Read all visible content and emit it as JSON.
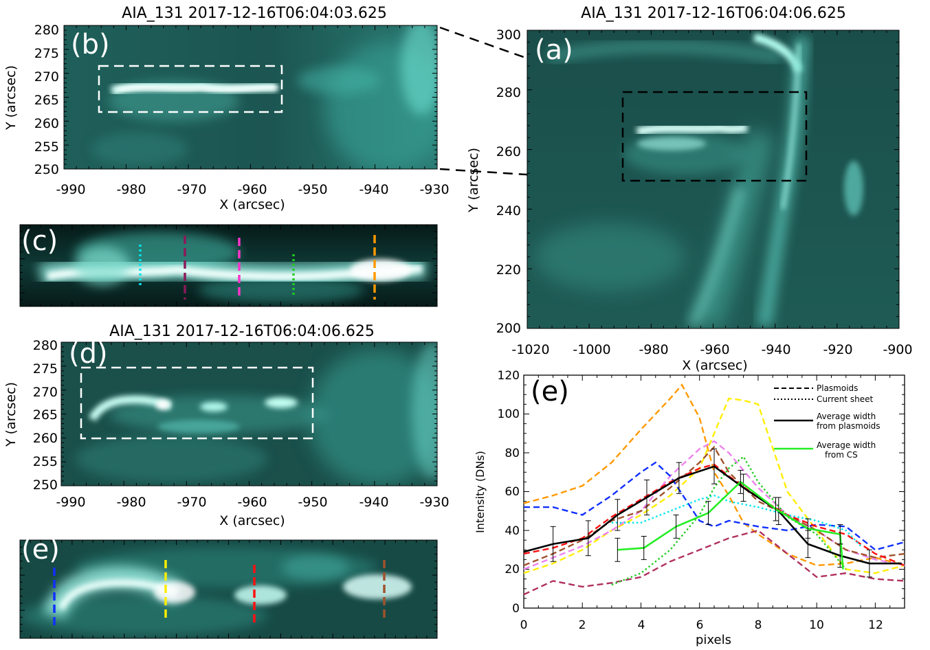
{
  "panel_b": {
    "title": "AIA_131 2017-12-16T06:04:03.625",
    "label": "(b)",
    "xlabel": "X (arcsec)",
    "ylabel": "Y (arcsec)",
    "xticks": [
      "-990",
      "-980",
      "-970",
      "-960",
      "-950",
      "-940",
      "-930"
    ],
    "yticks": [
      "280",
      "275",
      "270",
      "265",
      "260",
      "255",
      "250"
    ]
  },
  "panel_a": {
    "title": "AIA_131 2017-12-16T06:04:06.625",
    "label": "(a)",
    "xlabel": "X (arcsec)",
    "ylabel": "Y (arcsec)",
    "xticks": [
      "-1020",
      "-1000",
      "-980",
      "-960",
      "-940",
      "-920",
      "-900"
    ],
    "yticks": [
      "300",
      "280",
      "260",
      "240",
      "220",
      "200"
    ]
  },
  "panel_c": {
    "label": "(c)"
  },
  "panel_d": {
    "title": "AIA_131 2017-12-16T06:04:06.625",
    "label": "(d)",
    "xlabel": "X (arcsec)",
    "ylabel": "Y (arcsec)",
    "xticks": [
      "-990",
      "-980",
      "-970",
      "-960",
      "-950",
      "-940",
      "-930"
    ],
    "yticks": [
      "280",
      "275",
      "270",
      "265",
      "260",
      "255",
      "250"
    ]
  },
  "panel_e_image": {
    "label": "(e)"
  },
  "colors": {
    "cyan": "#00e5ee",
    "purple": "#8b1a5a",
    "magenta": "#ff33cc",
    "green": "#22cc22",
    "orange": "#ff9900",
    "blue": "#1030ff",
    "yellow": "#ffee00",
    "red": "#ff1010",
    "brown": "#a0522d",
    "violet": "#ee82ee",
    "darkpink": "#b03060"
  },
  "chart_data": {
    "type": "line",
    "label": "(e)",
    "xlabel": "pixels",
    "ylabel": "Intensity (DNs)",
    "xlim": [
      0,
      13
    ],
    "ylim": [
      0,
      120
    ],
    "xticks": [
      "0",
      "2",
      "4",
      "6",
      "8",
      "10",
      "12"
    ],
    "yticks": [
      "0",
      "20",
      "40",
      "60",
      "80",
      "100",
      "120"
    ],
    "legend": {
      "placement": "top-right",
      "entries": [
        {
          "label": "Plasmoids",
          "style": "dashed",
          "color": "#000000"
        },
        {
          "label": "Current sheet",
          "style": "dotted",
          "color": "#000000"
        },
        {
          "label": "Average width\nfrom plasmoids",
          "style": "solid",
          "color": "#000000"
        },
        {
          "label": "Average width\nfrom CS",
          "style": "solid",
          "color": "#22ee22"
        }
      ]
    },
    "series": [
      {
        "color": "#ff9900",
        "style": "dashed",
        "x": [
          0,
          1,
          2,
          3,
          4,
          5,
          5.4,
          6,
          6.5,
          7,
          7.5,
          8,
          9,
          10,
          11,
          12,
          13
        ],
        "y": [
          54,
          58,
          63,
          75,
          92,
          108,
          115,
          98,
          70,
          58,
          44,
          38,
          28,
          22,
          23,
          26,
          22
        ]
      },
      {
        "color": "#ffee00",
        "style": "dashed",
        "x": [
          0,
          1,
          2,
          3,
          4,
          5,
          6,
          6.5,
          7,
          7.5,
          8,
          9,
          10,
          11,
          12,
          13
        ],
        "y": [
          18,
          23,
          30,
          40,
          48,
          58,
          72,
          90,
          108,
          107,
          105,
          60,
          40,
          20,
          18,
          22
        ]
      },
      {
        "color": "#ee82ee",
        "style": "dashed",
        "x": [
          0,
          1,
          2,
          3,
          4,
          5,
          6,
          6.5,
          7,
          8,
          9,
          10,
          11,
          12,
          13
        ],
        "y": [
          20,
          26,
          32,
          40,
          50,
          68,
          82,
          86,
          80,
          62,
          48,
          40,
          30,
          25,
          22
        ]
      },
      {
        "color": "#a0522d",
        "style": "dashed",
        "x": [
          0,
          1,
          2,
          3,
          4,
          5,
          6,
          6.5,
          7,
          8,
          9,
          10,
          11,
          12,
          13
        ],
        "y": [
          22,
          28,
          35,
          45,
          50,
          62,
          75,
          83,
          70,
          55,
          48,
          40,
          30,
          26,
          28
        ]
      },
      {
        "color": "#1030ff",
        "style": "dashed",
        "x": [
          0,
          1,
          2,
          3,
          4,
          4.5,
          5,
          6,
          6.5,
          7,
          8,
          9,
          10,
          11,
          12,
          13
        ],
        "y": [
          52,
          52,
          48,
          58,
          70,
          75,
          68,
          45,
          42,
          45,
          42,
          40,
          43,
          42,
          30,
          34
        ]
      },
      {
        "color": "#ff1010",
        "style": "dashed",
        "x": [
          0,
          1,
          2,
          3,
          4,
          5,
          6,
          6.5,
          7,
          8,
          9,
          10,
          11,
          12,
          13
        ],
        "y": [
          28,
          31,
          36,
          47,
          56,
          65,
          72,
          74,
          68,
          57,
          48,
          42,
          38,
          28,
          22
        ]
      },
      {
        "color": "#b03060",
        "style": "dashed",
        "x": [
          0,
          1,
          2,
          3,
          4,
          5,
          6,
          7,
          8,
          9,
          10,
          11,
          12,
          13
        ],
        "y": [
          7,
          14,
          11,
          13,
          16,
          24,
          30,
          36,
          40,
          28,
          16,
          18,
          15,
          14
        ]
      },
      {
        "color": "#00e5ee",
        "style": "dotted",
        "x": [
          3,
          4,
          5,
          6,
          6.5,
          7,
          8,
          9,
          10,
          11,
          11.5
        ],
        "y": [
          44,
          44,
          50,
          56,
          58,
          55,
          52,
          48,
          45,
          40,
          32
        ]
      },
      {
        "color": "#22cc22",
        "style": "dotted",
        "x": [
          3,
          4,
          5,
          6,
          6.5,
          7,
          7.5,
          8,
          9,
          10,
          11
        ],
        "y": [
          12,
          18,
          30,
          48,
          62,
          72,
          78,
          65,
          47,
          38,
          20
        ]
      },
      {
        "color": "#000000",
        "style": "solid",
        "x": [
          0,
          1,
          2.2,
          3.2,
          4.2,
          5.3,
          6.5,
          7.5,
          8.7,
          9.7,
          10.8,
          11.8,
          12.9
        ],
        "y": [
          29,
          33,
          36,
          48,
          57,
          67,
          73,
          62,
          50,
          33,
          27,
          23,
          23
        ],
        "err": [
          0,
          9,
          9,
          8,
          9,
          8,
          9,
          7,
          7,
          7,
          6,
          7,
          0
        ]
      },
      {
        "color": "#22ee22",
        "style": "solid",
        "x": [
          3.2,
          4.1,
          5.2,
          6.3,
          7.4,
          8.6,
          9.7,
          10.8,
          10.9
        ],
        "y": [
          30,
          31,
          42,
          49,
          65,
          51,
          41,
          38,
          20
        ],
        "err": [
          6,
          6,
          6,
          6,
          6,
          6,
          5,
          5,
          0
        ]
      }
    ]
  }
}
